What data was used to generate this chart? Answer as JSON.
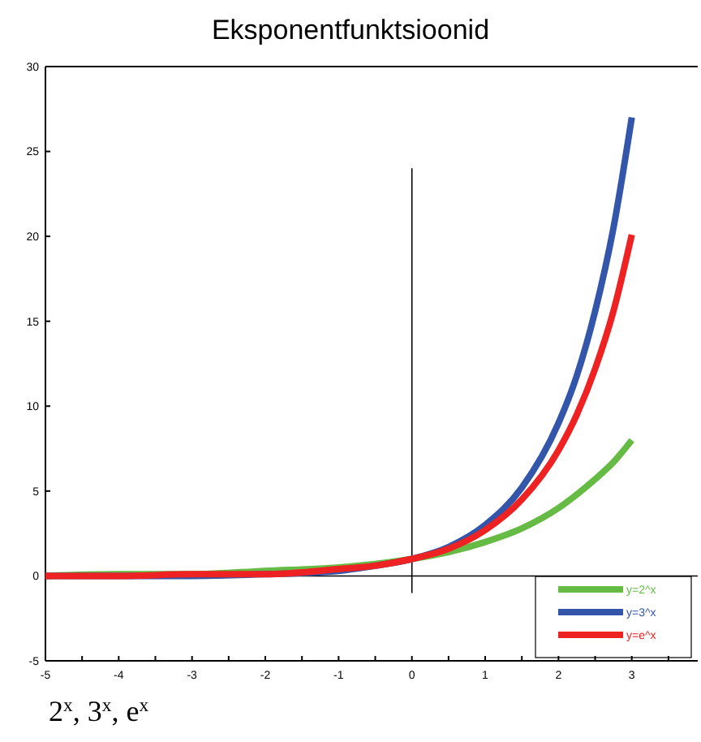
{
  "chart_data": {
    "type": "line",
    "title": "Eksponentfunktsioonid",
    "annotations": [
      "2$^{x}$, 3$^{x}$, e$^{x}$"
    ],
    "xlim": [
      -5,
      3.9
    ],
    "xticks": [
      -5,
      {
        "value": -4.5,
        "label": null
      },
      -4,
      {
        "value": -3.5,
        "label": null
      },
      -3,
      {
        "value": -2.5,
        "label": null
      },
      -2,
      {
        "value": -1.5,
        "label": null
      },
      -1,
      {
        "value": -0.5,
        "label": null
      },
      0,
      {
        "value": 0.5,
        "label": null
      },
      1,
      {
        "value": 1.5,
        "label": null
      },
      2,
      {
        "value": 2.5,
        "label": null
      },
      3,
      {
        "value": 3.5,
        "label": null
      }
    ],
    "ylim": [
      -5,
      30
    ],
    "yticks": [
      -5,
      0,
      5,
      10,
      15,
      20,
      25,
      30
    ],
    "x": [
      -5,
      -4,
      -3,
      -2,
      -1,
      -0.5,
      0,
      0.5,
      1,
      1.5,
      2,
      2.25,
      2.5,
      2.75,
      3
    ],
    "series": [
      {
        "name": "y=2^x",
        "color": "#66bb44",
        "values": [
          0,
          0.1,
          0.1,
          0.3,
          0.5,
          0.7,
          1,
          1.4,
          2,
          2.8,
          4,
          4.8,
          5.7,
          6.7,
          8
        ]
      },
      {
        "name": "y=3^x",
        "color": "#3355aa",
        "values": [
          0,
          0,
          0,
          0.1,
          0.3,
          0.6,
          1,
          1.7,
          3,
          5.2,
          9,
          11.8,
          15.6,
          20.5,
          27
        ]
      },
      {
        "name": "y=e^x",
        "color": "#ee2222",
        "values": [
          0,
          0,
          0.1,
          0.1,
          0.4,
          0.6,
          1,
          1.6,
          2.7,
          4.5,
          7.4,
          9.5,
          12.2,
          15.6,
          20.1
        ]
      }
    ],
    "ref_lines": [
      {
        "axis": "y",
        "value": 0,
        "color": "#000000"
      },
      {
        "axis": "x",
        "value": 0,
        "color": "#000000"
      }
    ],
    "legend": "bottom right",
    "grid": false
  }
}
